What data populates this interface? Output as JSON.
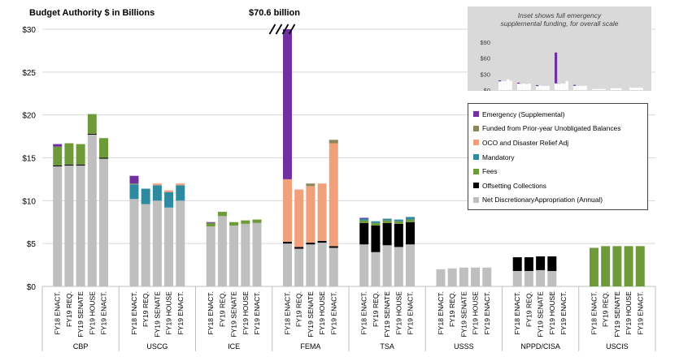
{
  "labels": {
    "y_title": "Budget Authority $ in Billions",
    "callout": "$70.6 billion",
    "inset_title_line1": "Inset shows full emergency",
    "inset_title_line2": "supplemental funding, for overall scale"
  },
  "chart_data": {
    "type": "bar",
    "stacked": true,
    "y_ticks": [
      "$0",
      "$5",
      "$10",
      "$15",
      "$20",
      "$25",
      "$30"
    ],
    "ylim": [
      0,
      30
    ],
    "legend_position": "right",
    "colors": {
      "Net DiscretionaryAppropriation (Annual)": "#bfbfbf",
      "Offsetting Collections": "#000000",
      "Fees": "#6f9a3a",
      "Mandatory": "#2e8aa0",
      "OCO and Disaster Relief Adj": "#f0a07a",
      "Funded from Prior-year Unobligated Balances": "#8c8759",
      "Emergency (Supplemental)": "#7030a0"
    },
    "legend_order": [
      "Emergency (Supplemental)",
      "Funded from Prior-year Unobligated Balances",
      "OCO and Disaster Relief Adj",
      "Mandatory",
      "Fees",
      "Offsetting Collections",
      "Net DiscretionaryAppropriation (Annual)"
    ],
    "stack_order": [
      "Net DiscretionaryAppropriation (Annual)",
      "Offsetting Collections",
      "Fees",
      "Mandatory",
      "OCO and Disaster Relief Adj",
      "Funded from Prior-year Unobligated Balances",
      "Emergency (Supplemental)"
    ],
    "groups": [
      {
        "name": "CBP",
        "bars": [
          {
            "label": "FY18 ENACT.",
            "segments": {
              "Net DiscretionaryAppropriation (Annual)": 14.0,
              "Offsetting Collections": 0.1,
              "Fees": 2.2,
              "Emergency (Supplemental)": 0.3
            }
          },
          {
            "label": "FY19 REQ.",
            "segments": {
              "Net DiscretionaryAppropriation (Annual)": 14.1,
              "Offsetting Collections": 0.1,
              "Fees": 2.5
            }
          },
          {
            "label": "FY19 SENATE",
            "segments": {
              "Net DiscretionaryAppropriation (Annual)": 14.1,
              "Offsetting Collections": 0.1,
              "Fees": 2.4
            }
          },
          {
            "label": "FY19 HOUSE",
            "segments": {
              "Net DiscretionaryAppropriation (Annual)": 17.7,
              "Offsetting Collections": 0.1,
              "Fees": 2.3
            }
          },
          {
            "label": "FY19 ENACT.",
            "segments": {
              "Net DiscretionaryAppropriation (Annual)": 14.9,
              "Offsetting Collections": 0.1,
              "Fees": 2.3
            }
          }
        ]
      },
      {
        "name": "USCG",
        "bars": [
          {
            "label": "FY18 ENACT.",
            "segments": {
              "Net DiscretionaryAppropriation (Annual)": 10.2,
              "Mandatory": 1.7,
              "Funded from Prior-year Unobligated Balances": 0.1,
              "Emergency (Supplemental)": 0.9
            }
          },
          {
            "label": "FY19 REQ.",
            "segments": {
              "Net DiscretionaryAppropriation (Annual)": 9.6,
              "Mandatory": 1.8
            }
          },
          {
            "label": "FY19 SENATE",
            "segments": {
              "Net DiscretionaryAppropriation (Annual)": 10.0,
              "Mandatory": 1.8,
              "OCO and Disaster Relief Adj": 0.2
            }
          },
          {
            "label": "FY19 HOUSE",
            "segments": {
              "Net DiscretionaryAppropriation (Annual)": 9.2,
              "Mandatory": 1.8,
              "OCO and Disaster Relief Adj": 0.2
            }
          },
          {
            "label": "FY19 ENACT.",
            "segments": {
              "Net DiscretionaryAppropriation (Annual)": 10.0,
              "Mandatory": 1.8,
              "OCO and Disaster Relief Adj": 0.2
            }
          }
        ]
      },
      {
        "name": "ICE",
        "bars": [
          {
            "label": "FY18 ENACT.",
            "segments": {
              "Net DiscretionaryAppropriation (Annual)": 7.0,
              "Fees": 0.4,
              "Emergency (Supplemental)": 0.1
            }
          },
          {
            "label": "FY19 REQ.",
            "segments": {
              "Net DiscretionaryAppropriation (Annual)": 8.2,
              "Fees": 0.5
            }
          },
          {
            "label": "FY19 SENATE",
            "segments": {
              "Net DiscretionaryAppropriation (Annual)": 7.1,
              "Fees": 0.4
            }
          },
          {
            "label": "FY19 HOUSE",
            "segments": {
              "Net DiscretionaryAppropriation (Annual)": 7.3,
              "Fees": 0.4
            }
          },
          {
            "label": "FY19 ENACT.",
            "segments": {
              "Net DiscretionaryAppropriation (Annual)": 7.4,
              "Fees": 0.4
            }
          }
        ]
      },
      {
        "name": "FEMA",
        "bars": [
          {
            "label": "FY18 ENACT.",
            "segments": {
              "Net DiscretionaryAppropriation (Annual)": 5.0,
              "Offsetting Collections": 0.2,
              "OCO and Disaster Relief Adj": 7.3,
              "Emergency (Supplemental)": 58.1
            }
          },
          {
            "label": "FY19 REQ.",
            "segments": {
              "Net DiscretionaryAppropriation (Annual)": 4.4,
              "Offsetting Collections": 0.2,
              "OCO and Disaster Relief Adj": 6.7
            }
          },
          {
            "label": "FY19 SENATE",
            "segments": {
              "Net DiscretionaryAppropriation (Annual)": 4.9,
              "Offsetting Collections": 0.2,
              "OCO and Disaster Relief Adj": 6.6,
              "Funded from Prior-year Unobligated Balances": 0.3
            }
          },
          {
            "label": "FY19 HOUSE",
            "segments": {
              "Net DiscretionaryAppropriation (Annual)": 5.1,
              "Offsetting Collections": 0.2,
              "OCO and Disaster Relief Adj": 6.7
            }
          },
          {
            "label": "FY19 ENACT.",
            "segments": {
              "Net DiscretionaryAppropriation (Annual)": 4.5,
              "Offsetting Collections": 0.2,
              "OCO and Disaster Relief Adj": 12.0,
              "Funded from Prior-year Unobligated Balances": 0.4
            }
          }
        ]
      },
      {
        "name": "TSA",
        "bars": [
          {
            "label": "FY18 ENACT.",
            "segments": {
              "Net DiscretionaryAppropriation (Annual)": 4.9,
              "Offsetting Collections": 2.5,
              "Fees": 0.3,
              "Mandatory": 0.2,
              "Emergency (Supplemental)": 0.1
            }
          },
          {
            "label": "FY19 REQ.",
            "segments": {
              "Net DiscretionaryAppropriation (Annual)": 4.0,
              "Offsetting Collections": 3.1,
              "Fees": 0.3,
              "Mandatory": 0.2
            }
          },
          {
            "label": "FY19 SENATE",
            "segments": {
              "Net DiscretionaryAppropriation (Annual)": 4.8,
              "Offsetting Collections": 2.6,
              "Fees": 0.3,
              "Mandatory": 0.2
            }
          },
          {
            "label": "FY19 HOUSE",
            "segments": {
              "Net DiscretionaryAppropriation (Annual)": 4.6,
              "Offsetting Collections": 2.7,
              "Fees": 0.3,
              "Mandatory": 0.2
            }
          },
          {
            "label": "FY19 ENACT.",
            "segments": {
              "Net DiscretionaryAppropriation (Annual)": 4.9,
              "Offsetting Collections": 2.6,
              "Fees": 0.3,
              "Mandatory": 0.3
            }
          }
        ]
      },
      {
        "name": "USSS",
        "bars": [
          {
            "label": "FY18 ENACT.",
            "segments": {
              "Net DiscretionaryAppropriation (Annual)": 2.0
            }
          },
          {
            "label": "FY19 REQ.",
            "segments": {
              "Net DiscretionaryAppropriation (Annual)": 2.1
            }
          },
          {
            "label": "FY19 SENATE",
            "segments": {
              "Net DiscretionaryAppropriation (Annual)": 2.2
            }
          },
          {
            "label": "FY19 HOUSE",
            "segments": {
              "Net DiscretionaryAppropriation (Annual)": 2.2
            }
          },
          {
            "label": "FY19 ENACT.",
            "segments": {
              "Net DiscretionaryAppropriation (Annual)": 2.2
            }
          }
        ]
      },
      {
        "name": "NPPD/CISA",
        "bars": [
          {
            "label": "FY18 ENACT.",
            "segments": {
              "Net DiscretionaryAppropriation (Annual)": 1.8,
              "Offsetting Collections": 1.6
            }
          },
          {
            "label": "FY19 REQ.",
            "segments": {
              "Net DiscretionaryAppropriation (Annual)": 1.8,
              "Offsetting Collections": 1.6
            }
          },
          {
            "label": "FY19 SENATE",
            "segments": {
              "Net DiscretionaryAppropriation (Annual)": 1.9,
              "Offsetting Collections": 1.6
            }
          },
          {
            "label": "FY19 HOUSE",
            "segments": {
              "Net DiscretionaryAppropriation (Annual)": 1.8,
              "Offsetting Collections": 1.7
            }
          },
          {
            "label": "FY19 ENACT.",
            "segments": {}
          }
        ]
      },
      {
        "name": "USCIS",
        "bars": [
          {
            "label": "FY18 ENACT.",
            "segments": {
              "Fees": 4.5
            }
          },
          {
            "label": "FY19 REQ.",
            "segments": {
              "Fees": 4.7
            }
          },
          {
            "label": "FY19 SENATE",
            "segments": {
              "Fees": 4.7
            }
          },
          {
            "label": "FY19 HOUSE",
            "segments": {
              "Fees": 4.7
            }
          },
          {
            "label": "FY19 ENACT.",
            "segments": {
              "Fees": 4.7
            }
          }
        ]
      }
    ],
    "inset": {
      "y_ticks": [
        "$0",
        "$30",
        "$60",
        "$90"
      ],
      "ylim": [
        0,
        90
      ],
      "emergency_values": [
        0.3,
        0.9,
        0.1,
        58.1,
        0.1,
        0,
        0,
        0
      ]
    }
  }
}
